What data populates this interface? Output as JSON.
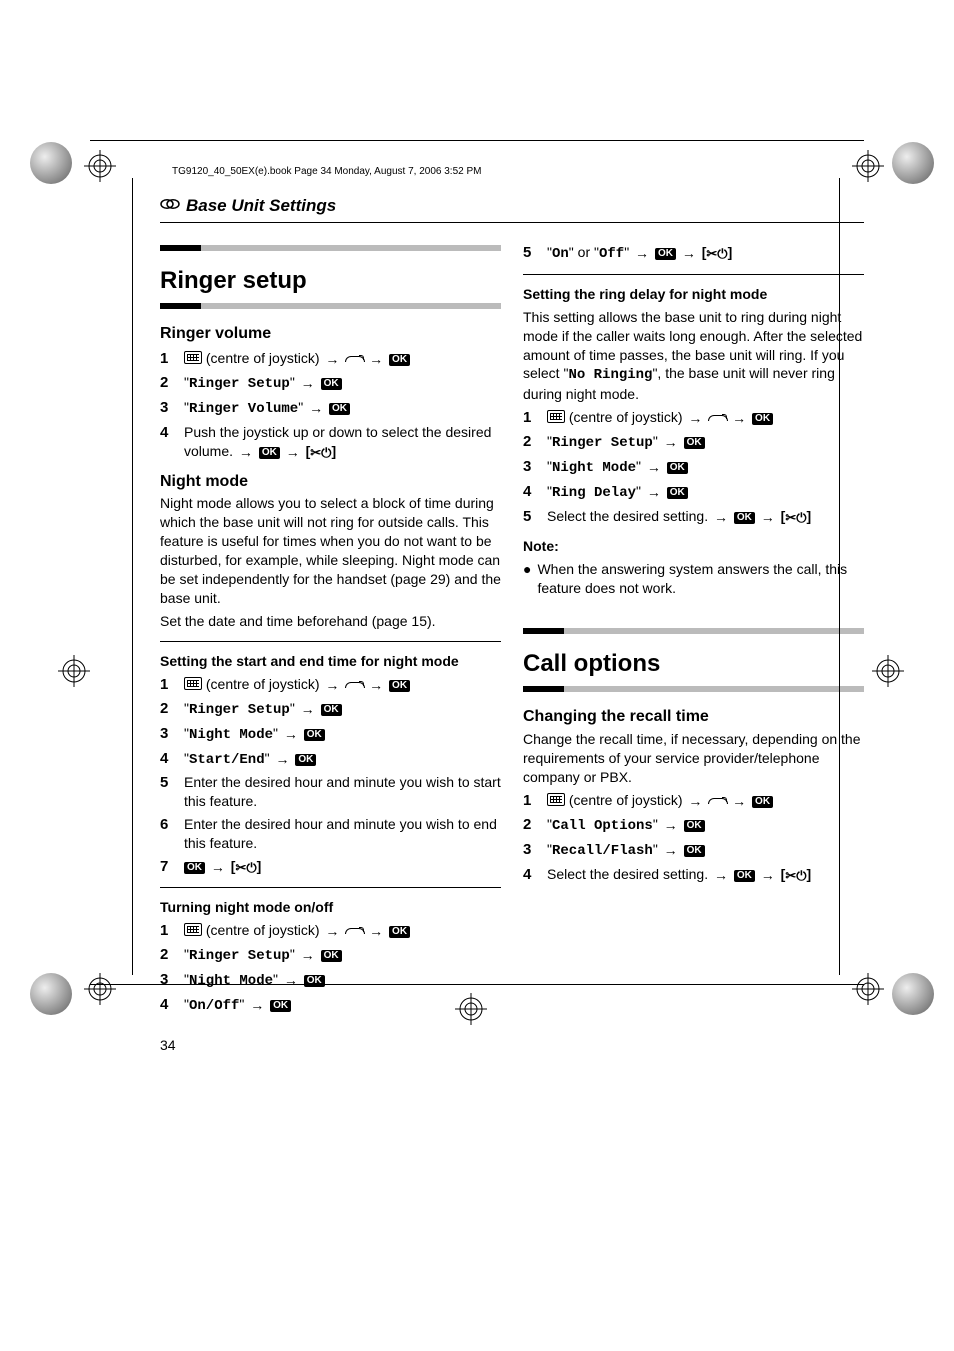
{
  "file_header": "TG9120_40_50EX(e).book  Page 34  Monday, August 7, 2006  3:52 PM",
  "breadcrumb": "Base Unit Settings",
  "page_number": "34",
  "icons": {
    "arrow": "→",
    "ok_label": "OK",
    "off_open": "[",
    "off_close": "]",
    "off_glyph1": "✕",
    "off_glyph2": "⏻"
  },
  "left": {
    "h1": "Ringer setup",
    "sec1": {
      "title": "Ringer volume",
      "steps": [
        {
          "n": "1",
          "parts": [
            {
              "icon": "joystick"
            },
            {
              "t": " (centre of joystick) "
            },
            {
              "icon": "arrow"
            },
            {
              "icon": "phone"
            },
            {
              "icon": "arrow"
            },
            {
              "icon": "ok"
            }
          ]
        },
        {
          "n": "2",
          "parts": [
            {
              "t": "\""
            },
            {
              "mono": "Ringer Setup"
            },
            {
              "t": "\" "
            },
            {
              "icon": "arrow"
            },
            {
              "icon": "ok"
            }
          ]
        },
        {
          "n": "3",
          "parts": [
            {
              "t": "\""
            },
            {
              "mono": "Ringer Volume"
            },
            {
              "t": "\" "
            },
            {
              "icon": "arrow"
            },
            {
              "icon": "ok"
            }
          ]
        },
        {
          "n": "4",
          "parts": [
            {
              "t": "Push the joystick up or down to select the desired volume. "
            },
            {
              "icon": "arrow"
            },
            {
              "icon": "ok"
            },
            {
              "icon": "arrow"
            },
            {
              "icon": "off"
            }
          ]
        }
      ]
    },
    "sec2": {
      "title": "Night mode",
      "para1": "Night mode allows you to select a block of time during which the base unit will not ring for outside calls. This feature is useful for times when you do not want to be disturbed, for example, while sleeping. Night mode can be set independently for the handset (page 29) and the base unit.",
      "para2": "Set the date and time beforehand (page 15).",
      "sub1": {
        "title": "Setting the start and end time for night mode",
        "steps": [
          {
            "n": "1",
            "parts": [
              {
                "icon": "joystick"
              },
              {
                "t": " (centre of joystick) "
              },
              {
                "icon": "arrow"
              },
              {
                "icon": "phone"
              },
              {
                "icon": "arrow"
              },
              {
                "icon": "ok"
              }
            ]
          },
          {
            "n": "2",
            "parts": [
              {
                "t": "\""
              },
              {
                "mono": "Ringer Setup"
              },
              {
                "t": "\" "
              },
              {
                "icon": "arrow"
              },
              {
                "icon": "ok"
              }
            ]
          },
          {
            "n": "3",
            "parts": [
              {
                "t": "\""
              },
              {
                "mono": "Night Mode"
              },
              {
                "t": "\" "
              },
              {
                "icon": "arrow"
              },
              {
                "icon": "ok"
              }
            ]
          },
          {
            "n": "4",
            "parts": [
              {
                "t": "\""
              },
              {
                "mono": "Start/End"
              },
              {
                "t": "\" "
              },
              {
                "icon": "arrow"
              },
              {
                "icon": "ok"
              }
            ]
          },
          {
            "n": "5",
            "parts": [
              {
                "t": "Enter the desired hour and minute you wish to start this feature."
              }
            ]
          },
          {
            "n": "6",
            "parts": [
              {
                "t": "Enter the desired hour and minute you wish to end this feature."
              }
            ]
          },
          {
            "n": "7",
            "parts": [
              {
                "icon": "ok"
              },
              {
                "icon": "arrow"
              },
              {
                "icon": "off"
              }
            ]
          }
        ]
      },
      "sub2": {
        "title": "Turning night mode on/off",
        "steps": [
          {
            "n": "1",
            "parts": [
              {
                "icon": "joystick"
              },
              {
                "t": " (centre of joystick) "
              },
              {
                "icon": "arrow"
              },
              {
                "icon": "phone"
              },
              {
                "icon": "arrow"
              },
              {
                "icon": "ok"
              }
            ]
          },
          {
            "n": "2",
            "parts": [
              {
                "t": "\""
              },
              {
                "mono": "Ringer Setup"
              },
              {
                "t": "\" "
              },
              {
                "icon": "arrow"
              },
              {
                "icon": "ok"
              }
            ]
          },
          {
            "n": "3",
            "parts": [
              {
                "t": "\""
              },
              {
                "mono": "Night Mode"
              },
              {
                "t": "\" "
              },
              {
                "icon": "arrow"
              },
              {
                "icon": "ok"
              }
            ]
          },
          {
            "n": "4",
            "parts": [
              {
                "t": "\""
              },
              {
                "mono": "On/Off"
              },
              {
                "t": "\" "
              },
              {
                "icon": "arrow"
              },
              {
                "icon": "ok"
              }
            ]
          }
        ]
      }
    }
  },
  "right": {
    "top_step": {
      "n": "5",
      "parts": [
        {
          "t": "\""
        },
        {
          "mono": "On"
        },
        {
          "t": "\" or \""
        },
        {
          "mono": "Off"
        },
        {
          "t": "\" "
        },
        {
          "icon": "arrow"
        },
        {
          "icon": "ok"
        },
        {
          "icon": "arrow"
        },
        {
          "icon": "off"
        }
      ]
    },
    "sub3": {
      "title": "Setting the ring delay for night mode",
      "para_parts": [
        {
          "t": "This setting allows the base unit to ring during night mode if the caller waits long enough. After the selected amount of time passes, the base unit will ring. If you select \""
        },
        {
          "mono": "No Ringing"
        },
        {
          "t": "\", the base unit will never ring during night mode."
        }
      ],
      "steps": [
        {
          "n": "1",
          "parts": [
            {
              "icon": "joystick"
            },
            {
              "t": " (centre of joystick) "
            },
            {
              "icon": "arrow"
            },
            {
              "icon": "phone"
            },
            {
              "icon": "arrow"
            },
            {
              "icon": "ok"
            }
          ]
        },
        {
          "n": "2",
          "parts": [
            {
              "t": "\""
            },
            {
              "mono": "Ringer Setup"
            },
            {
              "t": "\" "
            },
            {
              "icon": "arrow"
            },
            {
              "icon": "ok"
            }
          ]
        },
        {
          "n": "3",
          "parts": [
            {
              "t": "\""
            },
            {
              "mono": "Night Mode"
            },
            {
              "t": "\" "
            },
            {
              "icon": "arrow"
            },
            {
              "icon": "ok"
            }
          ]
        },
        {
          "n": "4",
          "parts": [
            {
              "t": "\""
            },
            {
              "mono": "Ring Delay"
            },
            {
              "t": "\" "
            },
            {
              "icon": "arrow"
            },
            {
              "icon": "ok"
            }
          ]
        },
        {
          "n": "5",
          "parts": [
            {
              "t": "Select the desired setting. "
            },
            {
              "icon": "arrow"
            },
            {
              "icon": "ok"
            },
            {
              "icon": "arrow"
            },
            {
              "icon": "off"
            }
          ]
        }
      ],
      "note_label": "Note:",
      "note_item": "When the answering system answers the call, this feature does not work."
    },
    "h1": "Call options",
    "sec1": {
      "title": "Changing the recall time",
      "para": "Change the recall time, if necessary, depending on the requirements of your service provider/telephone company or PBX.",
      "steps": [
        {
          "n": "1",
          "parts": [
            {
              "icon": "joystick"
            },
            {
              "t": " (centre of joystick) "
            },
            {
              "icon": "arrow"
            },
            {
              "icon": "phone"
            },
            {
              "icon": "arrow"
            },
            {
              "icon": "ok"
            }
          ]
        },
        {
          "n": "2",
          "parts": [
            {
              "t": "\""
            },
            {
              "mono": "Call Options"
            },
            {
              "t": "\" "
            },
            {
              "icon": "arrow"
            },
            {
              "icon": "ok"
            }
          ]
        },
        {
          "n": "3",
          "parts": [
            {
              "t": "\""
            },
            {
              "mono": "Recall/Flash"
            },
            {
              "t": "\" "
            },
            {
              "icon": "arrow"
            },
            {
              "icon": "ok"
            }
          ]
        },
        {
          "n": "4",
          "parts": [
            {
              "t": "Select the desired setting. "
            },
            {
              "icon": "arrow"
            },
            {
              "icon": "ok"
            },
            {
              "icon": "arrow"
            },
            {
              "icon": "off"
            }
          ]
        }
      ]
    }
  }
}
